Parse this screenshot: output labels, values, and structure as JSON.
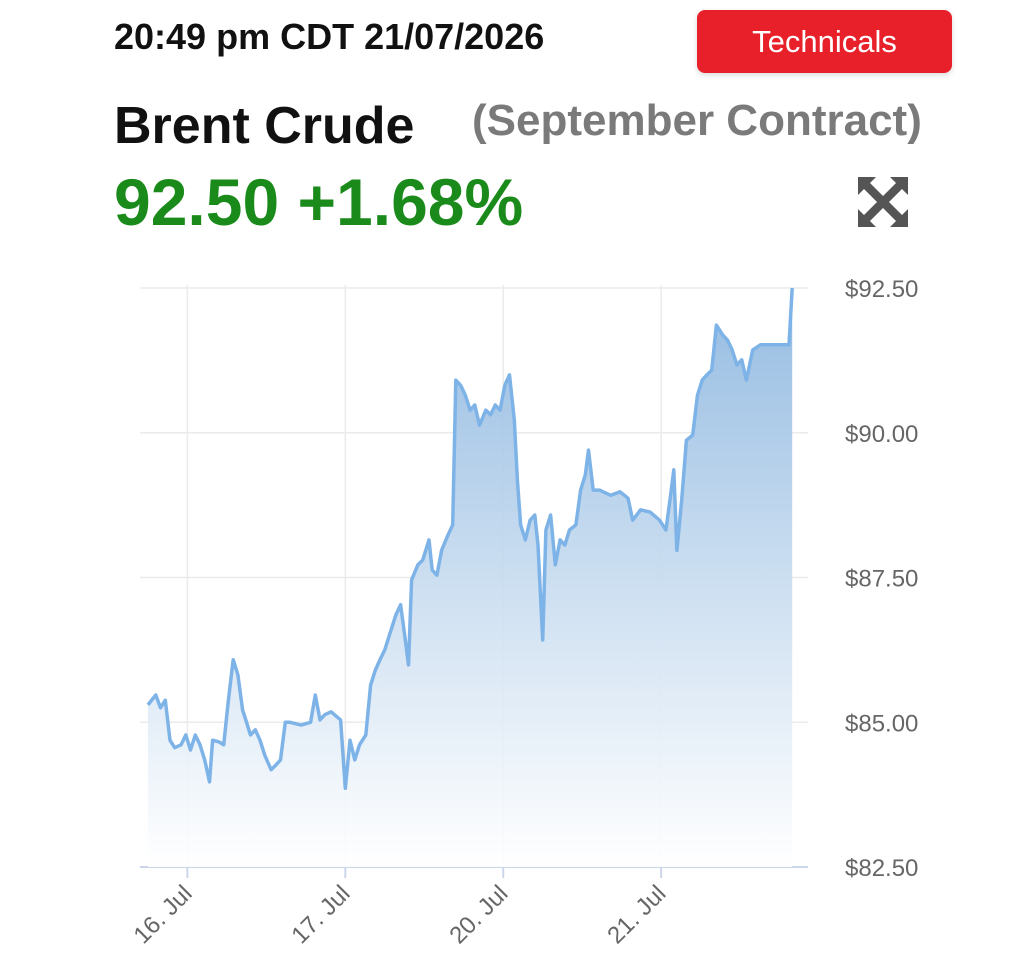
{
  "header": {
    "time": "20:49 pm CDT 21/07/2026",
    "button": "Technicals",
    "title": "Brent Crude",
    "subtitle": "(September Contract)",
    "price_change": "92.50 +1.68%"
  },
  "chart_data": {
    "type": "area",
    "color": "#7eb3e8",
    "grid": true,
    "xlim": [
      -0.3,
      3.93
    ],
    "ylim": [
      82.5,
      92.5
    ],
    "xticks": [
      {
        "value": 0,
        "label": "16. Jul"
      },
      {
        "value": 1,
        "label": "17. Jul"
      },
      {
        "value": 2,
        "label": "20. Jul"
      },
      {
        "value": 3,
        "label": "21. Jul"
      }
    ],
    "yticks": [
      {
        "value": 92.5,
        "label": "$92.50"
      },
      {
        "value": 90,
        "label": "$90.00"
      },
      {
        "value": 87.5,
        "label": "$87.50"
      },
      {
        "value": 85,
        "label": "$85.00"
      },
      {
        "value": 82.5,
        "label": "$82.50"
      }
    ],
    "x": [
      -0.25,
      -0.2,
      -0.17,
      -0.14,
      -0.11,
      -0.08,
      -0.04,
      -0.01,
      0.02,
      0.05,
      0.08,
      0.11,
      0.14,
      0.16,
      0.2,
      0.23,
      0.26,
      0.29,
      0.32,
      0.35,
      0.37,
      0.4,
      0.43,
      0.46,
      0.49,
      0.53,
      0.56,
      0.59,
      0.62,
      0.65,
      0.72,
      0.78,
      0.81,
      0.84,
      0.87,
      0.91,
      0.97,
      1.0,
      1.03,
      1.06,
      1.09,
      1.13,
      1.16,
      1.19,
      1.22,
      1.25,
      1.28,
      1.32,
      1.35,
      1.38,
      1.4,
      1.42,
      1.46,
      1.49,
      1.53,
      1.55,
      1.58,
      1.61,
      1.65,
      1.68,
      1.7,
      1.73,
      1.76,
      1.79,
      1.82,
      1.85,
      1.89,
      1.92,
      1.95,
      1.98,
      2.01,
      2.04,
      2.07,
      2.09,
      2.11,
      2.14,
      2.17,
      2.2,
      2.22,
      2.25,
      2.27,
      2.3,
      2.33,
      2.36,
      2.39,
      2.42,
      2.46,
      2.49,
      2.52,
      2.54,
      2.57,
      2.61,
      2.68,
      2.74,
      2.79,
      2.82,
      2.87,
      2.93,
      2.99,
      3.03,
      3.06,
      3.08,
      3.1,
      3.13,
      3.16,
      3.2,
      3.23,
      3.26,
      3.29,
      3.32,
      3.35,
      3.39,
      3.42,
      3.45,
      3.48,
      3.51,
      3.54,
      3.58,
      3.63,
      3.69,
      3.75,
      3.81,
      3.83
    ],
    "series": [
      {
        "values": [
          85.3,
          85.47,
          85.25,
          85.38,
          84.69,
          84.56,
          84.61,
          84.78,
          84.52,
          84.78,
          84.61,
          84.35,
          83.97,
          84.69,
          84.66,
          84.61,
          85.38,
          86.08,
          85.82,
          85.21,
          85.04,
          84.78,
          84.87,
          84.69,
          84.43,
          84.18,
          84.26,
          84.35,
          85.0,
          85.0,
          84.95,
          85.0,
          85.47,
          85.04,
          85.13,
          85.18,
          85.04,
          83.86,
          84.69,
          84.35,
          84.61,
          84.78,
          85.64,
          85.9,
          86.08,
          86.25,
          86.51,
          86.85,
          87.03,
          86.42,
          85.99,
          87.46,
          87.72,
          87.8,
          88.15,
          87.63,
          87.54,
          87.97,
          88.23,
          88.41,
          90.91,
          90.82,
          90.65,
          90.39,
          90.48,
          90.13,
          90.39,
          90.31,
          90.48,
          90.39,
          90.82,
          91.0,
          90.22,
          89.18,
          88.41,
          88.15,
          88.49,
          88.58,
          88.06,
          86.42,
          88.32,
          88.58,
          87.72,
          88.15,
          88.06,
          88.32,
          88.41,
          89.01,
          89.27,
          89.7,
          89.01,
          89.01,
          88.92,
          88.98,
          88.87,
          88.49,
          88.67,
          88.63,
          88.49,
          88.32,
          88.92,
          89.36,
          87.97,
          88.84,
          89.87,
          89.96,
          90.65,
          90.91,
          91.0,
          91.08,
          91.86,
          91.69,
          91.6,
          91.43,
          91.17,
          91.26,
          90.91,
          91.43,
          91.52,
          91.52,
          91.52,
          91.52,
          92.5
        ]
      }
    ]
  }
}
